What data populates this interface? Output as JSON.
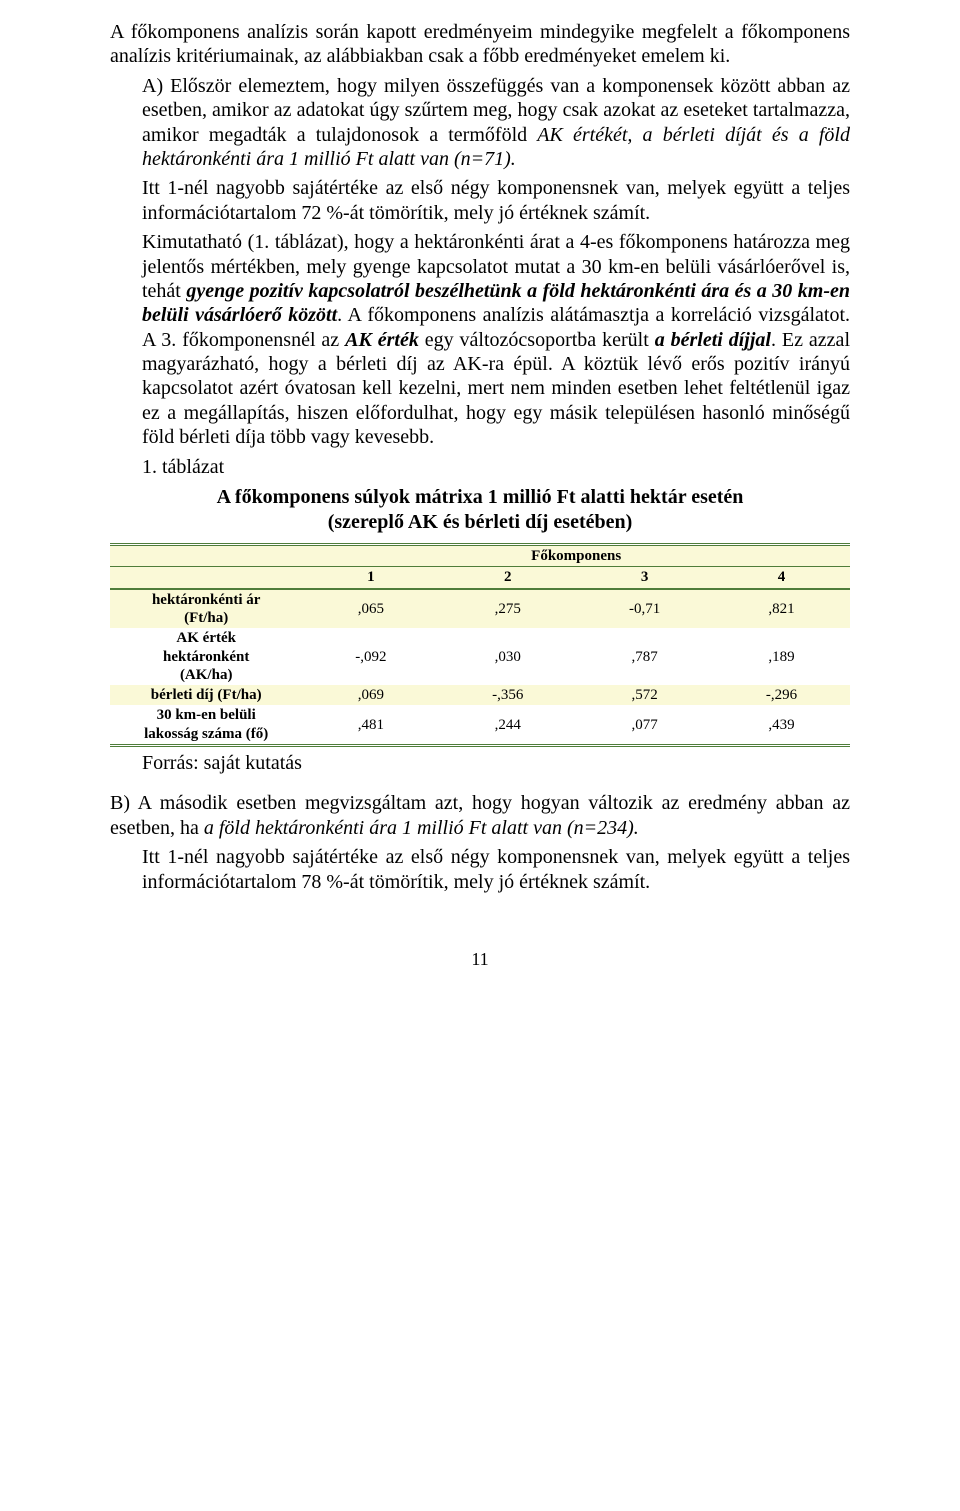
{
  "para1": "A főkomponens analízis során kapott eredményeim mindegyike megfelelt a főkomponens analízis kritériumainak, az alábbiakban csak a főbb eredményeket emelem ki.",
  "para2_prefix": "A) Először elemeztem, hogy milyen összefüggés van a komponensek között abban az esetben, amikor az adatokat úgy szűrtem meg, hogy csak azokat az eseteket tartalmazza, amikor megadták a tulajdonosok a termőföld ",
  "para2_italic1": "AK értékét, a bérleti díját és a föld hektáronkénti ára 1 millió Ft alatt van (n=71).",
  "para3": "Itt 1-nél nagyobb sajátértéke az első négy komponensnek van, melyek együtt a teljes információtartalom 72 %-át tömörítik, mely jó értéknek számít.",
  "para4_a": "Kimutatható (1. táblázat), hogy a hektáronkénti árat a 4-es főkomponens határozza meg jelentős mértékben, mely gyenge kapcsolatot mutat a 30 km-en belüli vásárlóerővel is, tehát ",
  "para4_b": "gyenge pozitív kapcsolatról beszélhetünk a föld hektáronkénti ára és a 30 km-en belüli vásárlóerő között",
  "para4_c": ". A főkomponens analízis alátámasztja a korreláció vizsgálatot. A 3. főkomponensnél az ",
  "para4_d": "AK érték",
  "para4_e": " egy változócsoportba került ",
  "para4_f": "a bérleti díjjal",
  "para4_g": ". Ez azzal magyarázható, hogy a bérleti díj az AK-ra épül. A köztük lévő erős pozitív irányú kapcsolatot azért óvatosan kell kezelni, mert nem minden esetben lehet feltétlenül igaz ez a megállapítás, hiszen előfordulhat, hogy egy másik településen hasonló minőségű föld bérleti díja több vagy kevesebb.",
  "table_caption_num": "1. táblázat",
  "table_title_l1": "A főkomponens súlyok mátrixa 1 millió Ft alatti hektár esetén",
  "table_title_l2": "(szereplő AK és bérleti díj esetében)",
  "table": {
    "header_group": "Főkomponens",
    "cols": [
      "1",
      "2",
      "3",
      "4"
    ],
    "rows": [
      {
        "label_l1": "hektáronkénti ár",
        "label_l2": "(Ft/ha)",
        "vals": [
          ",065",
          ",275",
          "-0,71",
          ",821"
        ],
        "shade": "yellow"
      },
      {
        "label_l1": "AK érték",
        "label_l2": "hektáronként",
        "label_l3": "(AK/ha)",
        "vals": [
          "-,092",
          ",030",
          ",787",
          ",189"
        ],
        "shade": "white"
      },
      {
        "label_l1": "bérleti díj (Ft/ha)",
        "vals": [
          ",069",
          "-,356",
          ",572",
          "-,296"
        ],
        "shade": "yellow"
      },
      {
        "label_l1": "30 km-en belüli",
        "label_l2": "lakosság száma (fő)",
        "vals": [
          ",481",
          ",244",
          ",077",
          ",439"
        ],
        "shade": "white"
      }
    ]
  },
  "source": "Forrás: saját kutatás",
  "para5_a": "B) A második esetben megvizsgáltam azt, hogy hogyan változik az eredmény abban az esetben, ha ",
  "para5_b": "a föld hektáronkénti ára 1 millió Ft alatt van (n=234).",
  "para6": "Itt 1-nél nagyobb sajátértéke az első négy komponensnek van, melyek együtt a teljes információtartalom 78 %-át tömörítik, mely jó értéknek számít.",
  "page_number": "11",
  "colors": {
    "table_shade": "#faf9d7",
    "table_border": "#4f7d3a"
  }
}
